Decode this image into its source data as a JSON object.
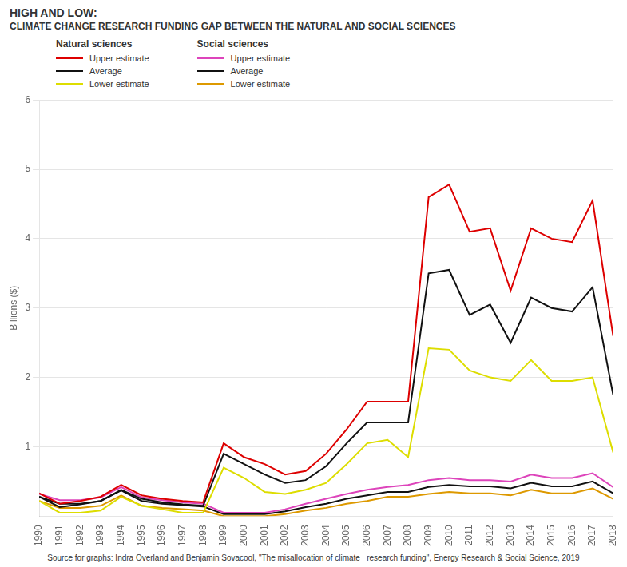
{
  "chart_data": {
    "type": "line",
    "title": "HIGH AND LOW:",
    "subtitle": "CLIMATE CHANGE RESEARCH FUNDING GAP BETWEEN  THE NATURAL AND SOCIAL SCIENCES",
    "ylabel": "Billions ($)",
    "x": [
      1990,
      1991,
      1992,
      1993,
      1994,
      1995,
      1996,
      1997,
      1998,
      1999,
      2000,
      2001,
      2002,
      2003,
      2004,
      2005,
      2006,
      2007,
      2008,
      2009,
      2010,
      2011,
      2012,
      2013,
      2014,
      2015,
      2016,
      2017,
      2018
    ],
    "xlim": [
      1990,
      2018
    ],
    "xticks": [
      1990,
      1991,
      1992,
      1993,
      1994,
      1995,
      1996,
      1997,
      1998,
      1999,
      2000,
      2001,
      2002,
      2003,
      2004,
      2005,
      2006,
      2007,
      2008,
      2009,
      2010,
      2011,
      2012,
      2013,
      2014,
      2015,
      2016,
      2017,
      2018
    ],
    "ylim": [
      0,
      6
    ],
    "yticks": [
      1,
      2,
      3,
      4,
      5,
      6
    ],
    "grid": true,
    "series": [
      {
        "name": "Upper estimate",
        "color": "#dd0000",
        "values": [
          0.33,
          0.18,
          0.22,
          0.28,
          0.45,
          0.3,
          0.25,
          0.22,
          0.2,
          1.05,
          0.85,
          0.75,
          0.6,
          0.65,
          0.9,
          1.25,
          1.65,
          1.65,
          1.65,
          4.6,
          4.78,
          4.1,
          4.15,
          3.25,
          4.15,
          4.0,
          3.95,
          4.55,
          2.6
        ]
      },
      {
        "name": "Average",
        "color": "#111111",
        "values": [
          0.28,
          0.13,
          0.17,
          0.22,
          0.38,
          0.25,
          0.2,
          0.17,
          0.15,
          0.9,
          0.75,
          0.6,
          0.48,
          0.52,
          0.72,
          1.05,
          1.35,
          1.35,
          1.35,
          3.5,
          3.55,
          2.9,
          3.05,
          2.5,
          3.15,
          3.0,
          2.95,
          3.3,
          1.75
        ]
      },
      {
        "name": "Lower estimate",
        "color": "#dddd00",
        "values": [
          0.22,
          0.05,
          0.05,
          0.08,
          0.28,
          0.15,
          0.1,
          0.05,
          0.05,
          0.7,
          0.55,
          0.35,
          0.32,
          0.38,
          0.48,
          0.75,
          1.05,
          1.1,
          0.85,
          2.42,
          2.4,
          2.1,
          2.0,
          1.95,
          2.25,
          1.95,
          1.95,
          2.0,
          0.92
        ]
      },
      {
        "name": "Upper estimate",
        "color": "#dd44bb",
        "values": [
          0.32,
          0.23,
          0.23,
          0.27,
          0.42,
          0.27,
          0.23,
          0.2,
          0.18,
          0.05,
          0.05,
          0.05,
          0.1,
          0.18,
          0.25,
          0.32,
          0.38,
          0.42,
          0.45,
          0.52,
          0.55,
          0.52,
          0.52,
          0.5,
          0.6,
          0.55,
          0.55,
          0.62,
          0.42
        ]
      },
      {
        "name": "Average",
        "color": "#111111",
        "values": [
          0.28,
          0.18,
          0.18,
          0.22,
          0.37,
          0.22,
          0.18,
          0.16,
          0.14,
          0.03,
          0.03,
          0.03,
          0.07,
          0.13,
          0.18,
          0.25,
          0.3,
          0.35,
          0.35,
          0.42,
          0.45,
          0.43,
          0.43,
          0.4,
          0.48,
          0.43,
          0.43,
          0.5,
          0.33
        ]
      },
      {
        "name": "Lower estimate",
        "color": "#dd9900",
        "values": [
          0.22,
          0.12,
          0.12,
          0.15,
          0.3,
          0.15,
          0.12,
          0.1,
          0.08,
          0.0,
          0.0,
          0.0,
          0.03,
          0.08,
          0.12,
          0.18,
          0.22,
          0.28,
          0.28,
          0.32,
          0.35,
          0.33,
          0.33,
          0.3,
          0.38,
          0.33,
          0.33,
          0.4,
          0.25
        ]
      }
    ],
    "annotations": [
      "Natural sciences",
      "Social sciences",
      "Source for graphs: Indra Overland and Benjamin Sovacool, \"The misallocation of climate   research funding\", Energy Research & Social Science, 2019"
    ]
  }
}
